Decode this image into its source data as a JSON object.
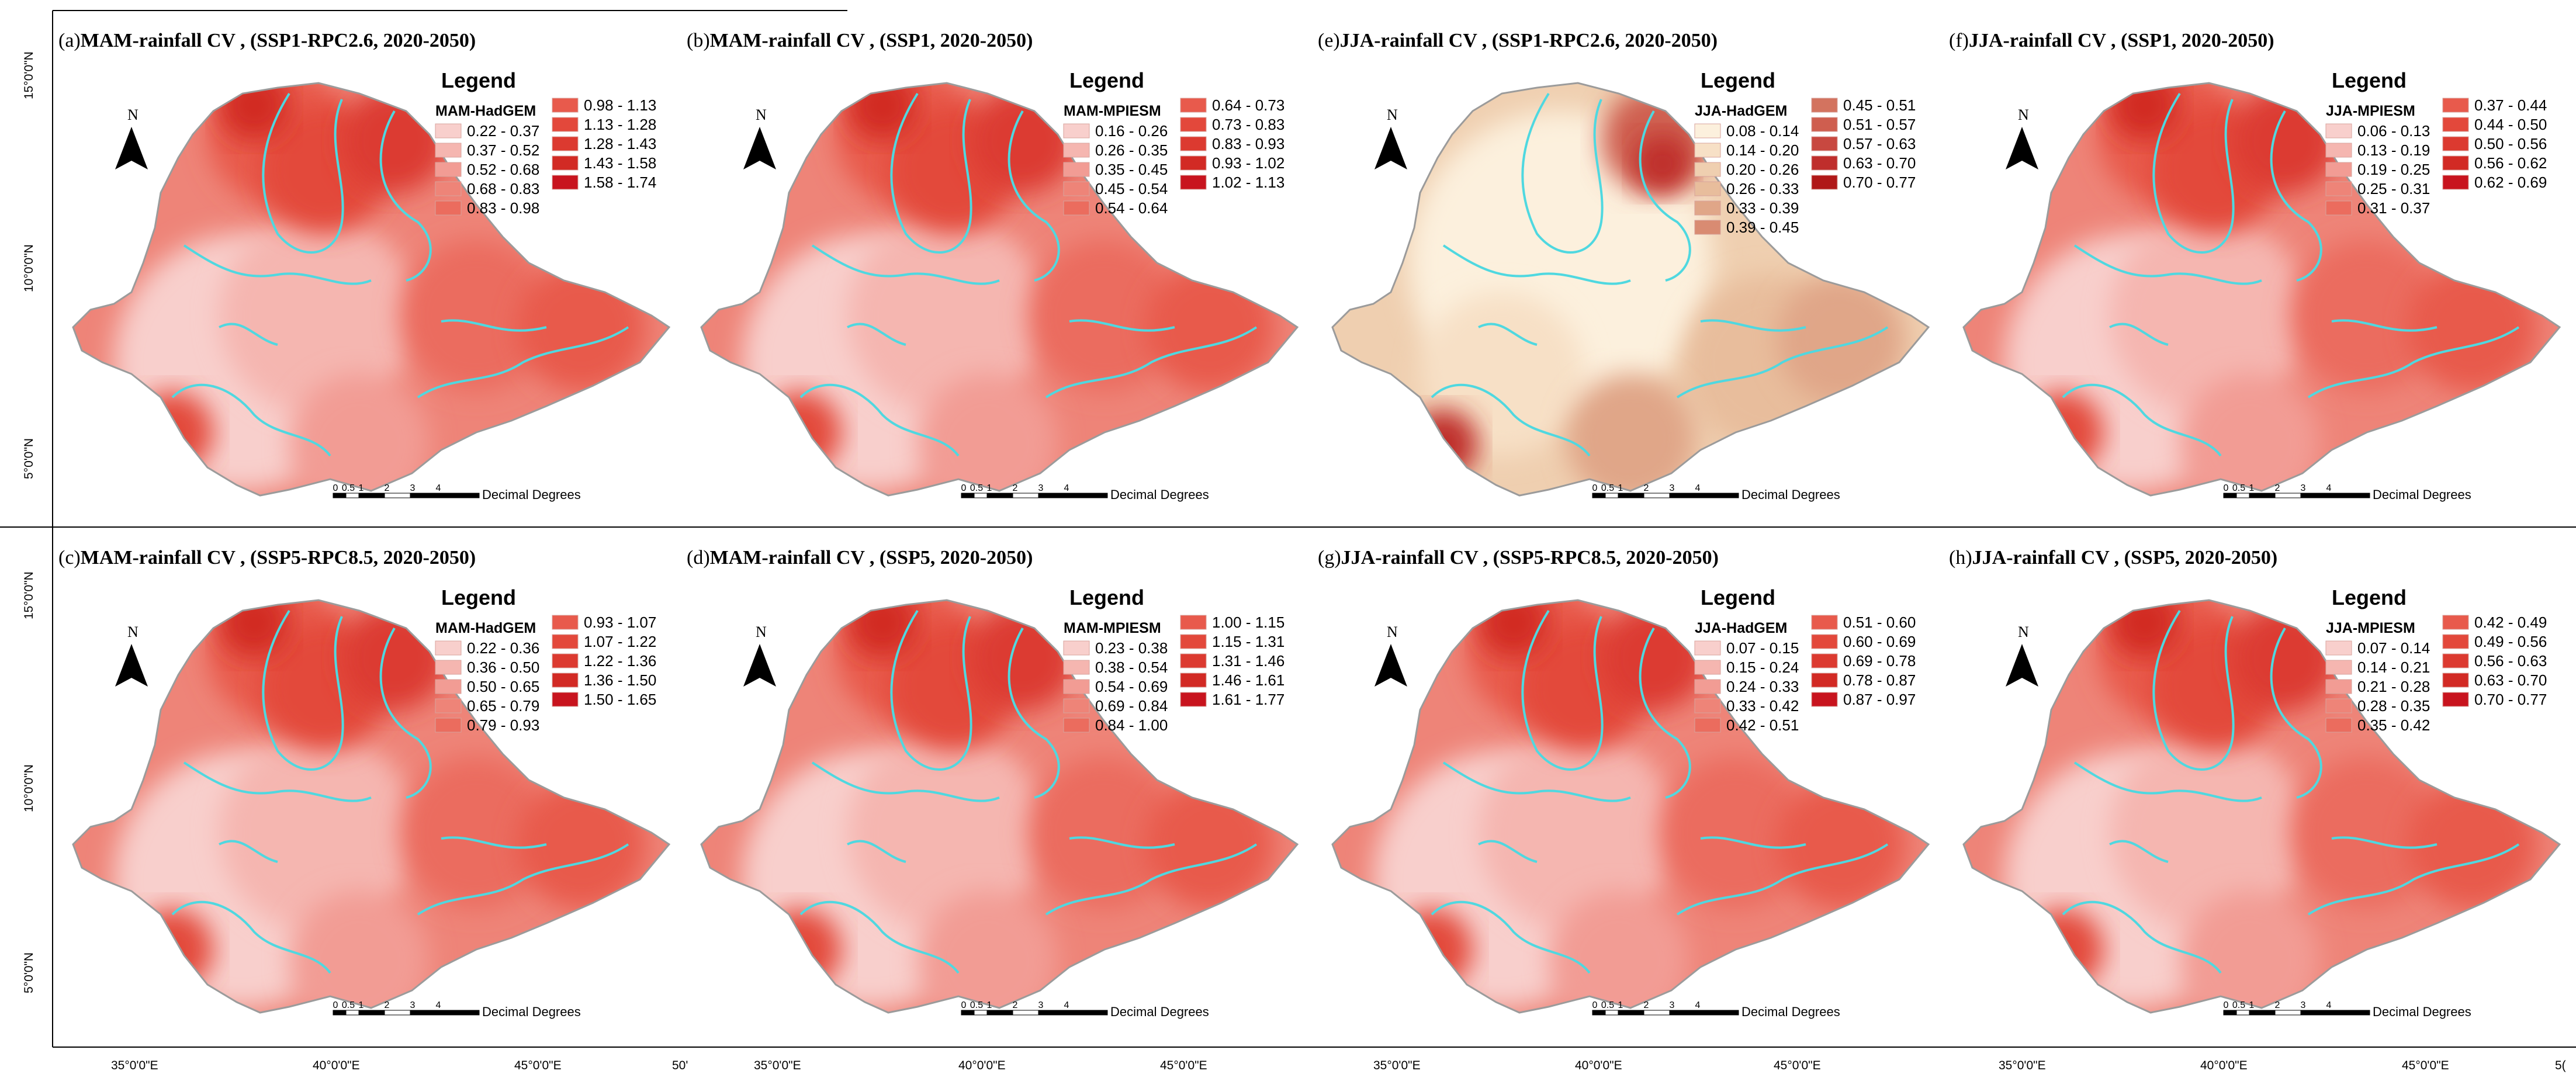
{
  "figure": {
    "x_axis_labels": [
      "35°0'0\"E",
      "40°0'0\"E",
      "45°0'0\"E",
      "50'"
    ],
    "x_axis_labels_right": [
      "35°0'0\"E",
      "40°0'0\"E",
      "45°0'0\"E",
      "5("
    ],
    "y_axis_labels": [
      "15°0'0\"N",
      "10°0'0\"N",
      "5°0'0\"N"
    ],
    "scale_ticks": [
      "0",
      "0.5",
      "1",
      "2",
      "3",
      "4"
    ],
    "scale_unit": "Decimal Degrees",
    "north_label": "N",
    "legend_heading": "Legend",
    "boundary_color": "#4fd8e0",
    "accent_color": "#c8141e"
  },
  "panels": [
    {
      "id": "a",
      "label": "(a)",
      "title": "MAM-rainfall CV , (SSP1-RPC2.6,  2020-2050)",
      "subtitle": "MAM-HadGEM",
      "palette": "red",
      "classes": [
        "0.22 - 0.37",
        "0.37 - 0.52",
        "0.52 - 0.68",
        "0.68 - 0.83",
        "0.83 - 0.98",
        "0.98 - 1.13",
        "1.13 - 1.28",
        "1.28 - 1.43",
        "1.43 - 1.58",
        "1.58 - 1.74"
      ],
      "swatch_colors": [
        "#f8cfcc",
        "#f5b6b0",
        "#f29c94",
        "#ee8478",
        "#eb6c5e",
        "#e85a4c",
        "#e3483b",
        "#dc3a30",
        "#d22a24",
        "#c8141e"
      ]
    },
    {
      "id": "b",
      "label": "(b)",
      "title": "MAM-rainfall CV , (SSP1,  2020-2050)",
      "subtitle": "MAM-MPIESM",
      "palette": "red",
      "classes": [
        "0.16 - 0.26",
        "0.26 - 0.35",
        "0.35 - 0.45",
        "0.45 - 0.54",
        "0.54 - 0.64",
        "0.64 - 0.73",
        "0.73 - 0.83",
        "0.83 - 0.93",
        "0.93 - 1.02",
        "1.02 - 1.13"
      ],
      "swatch_colors": [
        "#f8cfcc",
        "#f5b6b0",
        "#f29c94",
        "#ee8478",
        "#eb6c5e",
        "#e85a4c",
        "#e3483b",
        "#dc3a30",
        "#d22a24",
        "#c8141e"
      ]
    },
    {
      "id": "e",
      "label": "(e)",
      "title": "JJA-rainfall CV , (SSP1-RPC2.6,  2020-2050)",
      "subtitle": "JJA-HadGEM",
      "palette": "tan",
      "classes": [
        "0.08 - 0.14",
        "0.14 - 0.20",
        "0.20 - 0.26",
        "0.26 - 0.33",
        "0.33 - 0.39",
        "0.39 - 0.45",
        "0.45 - 0.51",
        "0.51 - 0.57",
        "0.57 - 0.63",
        "0.63 - 0.70",
        "0.70 - 0.77"
      ],
      "swatch_colors": [
        "#fcf0dd",
        "#f7e0c6",
        "#efcfb0",
        "#e8bd9c",
        "#e0a688",
        "#d98b72",
        "#d3735f",
        "#cf5e4f",
        "#c84840",
        "#bf2e2c",
        "#b01818"
      ]
    },
    {
      "id": "f",
      "label": "(f)",
      "title": "JJA-rainfall CV , (SSP1,  2020-2050)",
      "subtitle": "JJA-MPIESM",
      "palette": "red",
      "classes": [
        "0.06 - 0.13",
        "0.13 - 0.19",
        "0.19 - 0.25",
        "0.25 - 0.31",
        "0.31 - 0.37",
        "0.37 - 0.44",
        "0.44 - 0.50",
        "0.50 - 0.56",
        "0.56 - 0.62",
        "0.62 - 0.69"
      ],
      "swatch_colors": [
        "#f8cfcc",
        "#f5b6b0",
        "#f29c94",
        "#ee8478",
        "#eb6c5e",
        "#e85a4c",
        "#e3483b",
        "#dc3a30",
        "#d22a24",
        "#c8141e"
      ]
    },
    {
      "id": "c",
      "label": "(c)",
      "title": "MAM-rainfall CV , (SSP5-RPC8.5,  2020-2050)",
      "subtitle": "MAM-HadGEM",
      "palette": "red",
      "classes": [
        "0.22 - 0.36",
        "0.36 - 0.50",
        "0.50 - 0.65",
        "0.65 - 0.79",
        "0.79 - 0.93",
        "0.93 - 1.07",
        "1.07 - 1.22",
        "1.22 - 1.36",
        "1.36 - 1.50",
        "1.50 - 1.65"
      ],
      "swatch_colors": [
        "#f8cfcc",
        "#f5b6b0",
        "#f29c94",
        "#ee8478",
        "#eb6c5e",
        "#e85a4c",
        "#e3483b",
        "#dc3a30",
        "#d22a24",
        "#c8141e"
      ]
    },
    {
      "id": "d",
      "label": "(d)",
      "title": "MAM-rainfall CV , (SSP5,  2020-2050)",
      "subtitle": "MAM-MPIESM",
      "palette": "red",
      "classes": [
        "0.23 - 0.38",
        "0.38 - 0.54",
        "0.54 - 0.69",
        "0.69 - 0.84",
        "0.84 - 1.00",
        "1.00 - 1.15",
        "1.15 - 1.31",
        "1.31 - 1.46",
        "1.46 - 1.61",
        "1.61 - 1.77"
      ],
      "swatch_colors": [
        "#f8cfcc",
        "#f5b6b0",
        "#f29c94",
        "#ee8478",
        "#eb6c5e",
        "#e85a4c",
        "#e3483b",
        "#dc3a30",
        "#d22a24",
        "#c8141e"
      ]
    },
    {
      "id": "g",
      "label": "(g)",
      "title": "JJA-rainfall CV , (SSP5-RPC8.5,  2020-2050)",
      "subtitle": "JJA-HadGEM",
      "palette": "red",
      "classes": [
        "0.07 - 0.15",
        "0.15 - 0.24",
        "0.24 - 0.33",
        "0.33 - 0.42",
        "0.42 - 0.51",
        "0.51 - 0.60",
        "0.60 - 0.69",
        "0.69 - 0.78",
        "0.78 - 0.87",
        "0.87 - 0.97"
      ],
      "swatch_colors": [
        "#f8cfcc",
        "#f5b6b0",
        "#f29c94",
        "#ee8478",
        "#eb6c5e",
        "#e85a4c",
        "#e3483b",
        "#dc3a30",
        "#d22a24",
        "#c8141e"
      ]
    },
    {
      "id": "h",
      "label": "(h)",
      "title": "JJA-rainfall CV , (SSP5,  2020-2050)",
      "subtitle": "JJA-MPIESM",
      "palette": "red",
      "classes": [
        "0.07 - 0.14",
        "0.14 - 0.21",
        "0.21 - 0.28",
        "0.28 - 0.35",
        "0.35 - 0.42",
        "0.42 - 0.49",
        "0.49 - 0.56",
        "0.56 - 0.63",
        "0.63 - 0.70",
        "0.70 - 0.77"
      ],
      "swatch_colors": [
        "#f8cfcc",
        "#f5b6b0",
        "#f29c94",
        "#ee8478",
        "#eb6c5e",
        "#e85a4c",
        "#e3483b",
        "#dc3a30",
        "#d22a24",
        "#c8141e"
      ]
    }
  ]
}
